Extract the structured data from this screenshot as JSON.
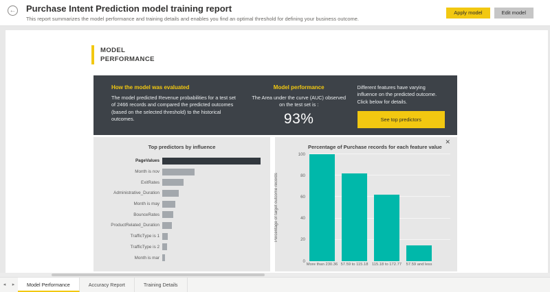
{
  "header": {
    "title": "Purchase Intent Prediction model training report",
    "subtitle": "This report summarizes the model performance and training details and enables you find an optimal threshold for defining your business outcome.",
    "apply_button": "Apply model",
    "edit_button": "Edit model"
  },
  "icons": {
    "back": "←",
    "close": "✕",
    "tab_prev": "◂",
    "tab_next": "▸"
  },
  "section_heading": {
    "line1": "MODEL",
    "line2": "PERFORMANCE"
  },
  "dark_panel": {
    "evaluated": {
      "heading": "How the model was evaluated",
      "body": "The model predicted Revenue probabilities for a test set of 2466 records and compared the predicted outcomes (based on the selected threshold) to the historical outcomes."
    },
    "performance": {
      "heading": "Model performance",
      "body": "The Area under the curve (AUC) observed on the test set is :",
      "auc_value": "93%"
    },
    "features": {
      "body": "Different features have varying influence on the predicted outcome.  Click below for details.",
      "button": "See top predictors"
    }
  },
  "chart_data": [
    {
      "type": "bar",
      "orientation": "horizontal",
      "title": "Top predictors by influence",
      "categories": [
        "PageValues",
        "Month is nov",
        "ExitRates",
        "Administrative_Duration",
        "Month is may",
        "BounceRates",
        "ProductRelated_Duration",
        "TrafficType is 1",
        "TrafficType is 2",
        "Month is mar"
      ],
      "values": [
        1.0,
        0.33,
        0.22,
        0.17,
        0.135,
        0.11,
        0.095,
        0.057,
        0.048,
        0.028
      ],
      "selected_category": "PageValues",
      "xlim": [
        0,
        1
      ],
      "grid": false,
      "legend": "none",
      "bar_color": "#a3a8ad",
      "selected_bar_color": "#32383e"
    },
    {
      "type": "bar",
      "title": "Percentage of Purchase records for each feature value",
      "categories": [
        "More than 230.36",
        "57.59 to 115.18",
        "115.18 to 172.77",
        "57.59 and less"
      ],
      "values": [
        100,
        82,
        62,
        15
      ],
      "xlabel": "",
      "ylabel": "Percentage of target outcome records",
      "ylim": [
        0,
        100
      ],
      "yticks": [
        0,
        20,
        40,
        60,
        80,
        100
      ],
      "grid": true,
      "legend": "none",
      "bar_color": "#00B8AA"
    }
  ],
  "tabs": {
    "items": [
      "Model Performance",
      "Accuracy Report",
      "Training Details"
    ],
    "active_index": 0
  },
  "colors": {
    "accent_yellow": "#F2C811",
    "teal": "#00B8AA",
    "dark_panel": "#3d4248",
    "card_background": "#e7e7e7"
  }
}
